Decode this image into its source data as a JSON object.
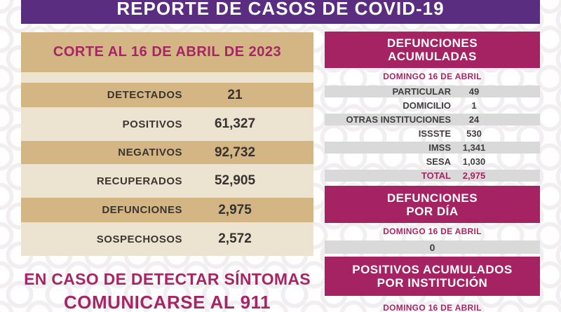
{
  "header": {
    "title": "REPORTE DE CASOS DE COVID-19"
  },
  "left_panel": {
    "banner": "CORTE AL 16 DE ABRIL DE 2023",
    "rows": [
      {
        "label": "DETECTADOS",
        "value": "21"
      },
      {
        "label": "POSITIVOS",
        "value": "61,327"
      },
      {
        "label": "NEGATIVOS",
        "value": "92,732"
      },
      {
        "label": "RECUPERADOS",
        "value": "52,905"
      },
      {
        "label": "DEFUNCIONES",
        "value": "2,975"
      },
      {
        "label": "SOSPECHOSOS",
        "value": "2,572"
      }
    ],
    "notice_line1": "EN CASO DE DETECTAR SÍNTOMAS",
    "notice_line2": "COMUNICARSE AL 911"
  },
  "right_panel": {
    "acumuladas": {
      "title_line1": "DEFUNCIONES",
      "title_line2": "ACUMULADAS",
      "date": "DOMINGO 16 DE ABRIL",
      "rows": [
        {
          "label": "PARTICULAR",
          "value": "49"
        },
        {
          "label": "DOMICILIO",
          "value": "1"
        },
        {
          "label": "OTRAS INSTITUCIONES",
          "value": "24"
        },
        {
          "label": "ISSSTE",
          "value": "530"
        },
        {
          "label": "IMSS",
          "value": "1,341"
        },
        {
          "label": "SESA",
          "value": "1,030"
        }
      ],
      "total_label": "TOTAL",
      "total_value": "2,975"
    },
    "por_dia": {
      "title_line1": "DEFUNCIONES",
      "title_line2": "POR DÍA",
      "date": "DOMINGO 16 DE ABRIL",
      "value": "0"
    },
    "por_institucion": {
      "title_line1": "POSITIVOS ACUMULADOS",
      "title_line2": "POR INSTITUCIÓN",
      "date": "DOMINGO 16 DE ABRIL"
    }
  },
  "colors": {
    "purple_header": "#5a2d80",
    "magenta_banner": "#a52363",
    "magenta_text": "#a62565",
    "tan": "#d3b684",
    "cream": "#ece4d1",
    "gray_row": "#d9d9d9",
    "dark_text": "#3b3530"
  }
}
